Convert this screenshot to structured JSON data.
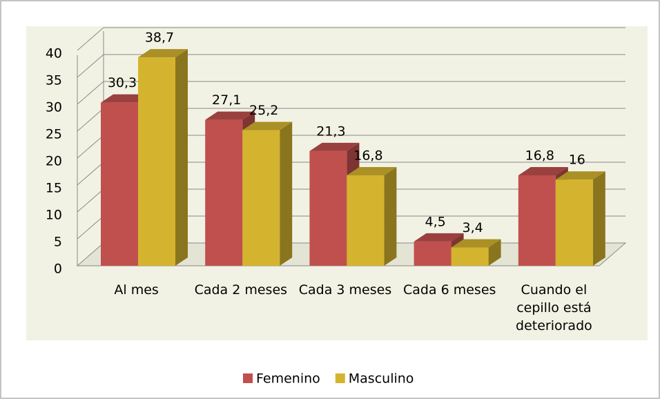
{
  "chart_data": {
    "type": "bar3d",
    "categories": [
      "Al mes",
      "Cada 2 meses",
      "Cada 3 meses",
      "Cada 6 meses",
      "Cuando el cepillo está deteriorado"
    ],
    "series": [
      {
        "name": "Femenino",
        "color": "#c0504d",
        "values": [
          30.3,
          27.1,
          21.3,
          4.5,
          16.8
        ],
        "value_labels": [
          "30,3",
          "27,1",
          "21,3",
          "4,5",
          "16,8"
        ]
      },
      {
        "name": "Masculino",
        "color": "#d4b42e",
        "values": [
          38.7,
          25.2,
          16.8,
          3.4,
          16
        ],
        "value_labels": [
          "38,7",
          "25,2",
          "16,8",
          "3,4",
          "16"
        ]
      }
    ],
    "ylim": [
      0,
      40
    ],
    "yticks": [
      0,
      5,
      10,
      15,
      20,
      25,
      30,
      35,
      40
    ],
    "grid": true,
    "legend": "bottom"
  }
}
